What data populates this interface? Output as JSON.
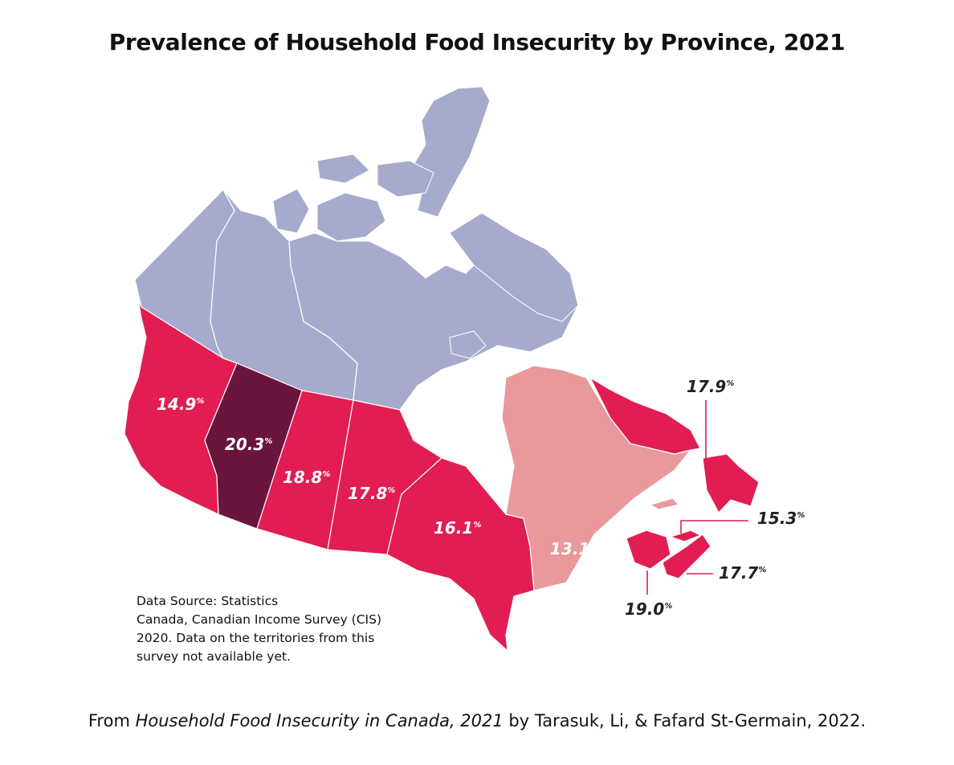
{
  "title": "Prevalence of Household Food Insecurity by Province, 2021",
  "colors": {
    "territories": "#a6abcd",
    "high": "#e11d52",
    "highest": "#6a153e",
    "low": "#e9989c",
    "border": "#ffffff",
    "label_light": "#ffffff",
    "label_dark": "#222222"
  },
  "provinces": [
    {
      "name": "British Columbia",
      "value": "14.9",
      "unit": "%"
    },
    {
      "name": "Alberta",
      "value": "20.3",
      "unit": "%"
    },
    {
      "name": "Saskatchewan",
      "value": "18.8",
      "unit": "%"
    },
    {
      "name": "Manitoba",
      "value": "17.8",
      "unit": "%"
    },
    {
      "name": "Ontario",
      "value": "16.1",
      "unit": "%"
    },
    {
      "name": "Quebec",
      "value": "13.1",
      "unit": "%"
    },
    {
      "name": "Newfoundland and Labrador",
      "value": "17.9",
      "unit": "%"
    },
    {
      "name": "Prince Edward Island",
      "value": "15.3",
      "unit": "%"
    },
    {
      "name": "Nova Scotia",
      "value": "17.7",
      "unit": "%"
    },
    {
      "name": "New Brunswick",
      "value": "19.0",
      "unit": "%"
    }
  ],
  "source_lines": [
    "Data Source: Statistics",
    "Canada, Canadian Income Survey (CIS)",
    "2020. Data on the territories from this",
    "survey not available yet."
  ],
  "citation": {
    "prefix": "From ",
    "book": "Household Food Insecurity in Canada, 2021",
    "suffix": " by Tarasuk, Li, & Fafard St-Germain, 2022."
  }
}
